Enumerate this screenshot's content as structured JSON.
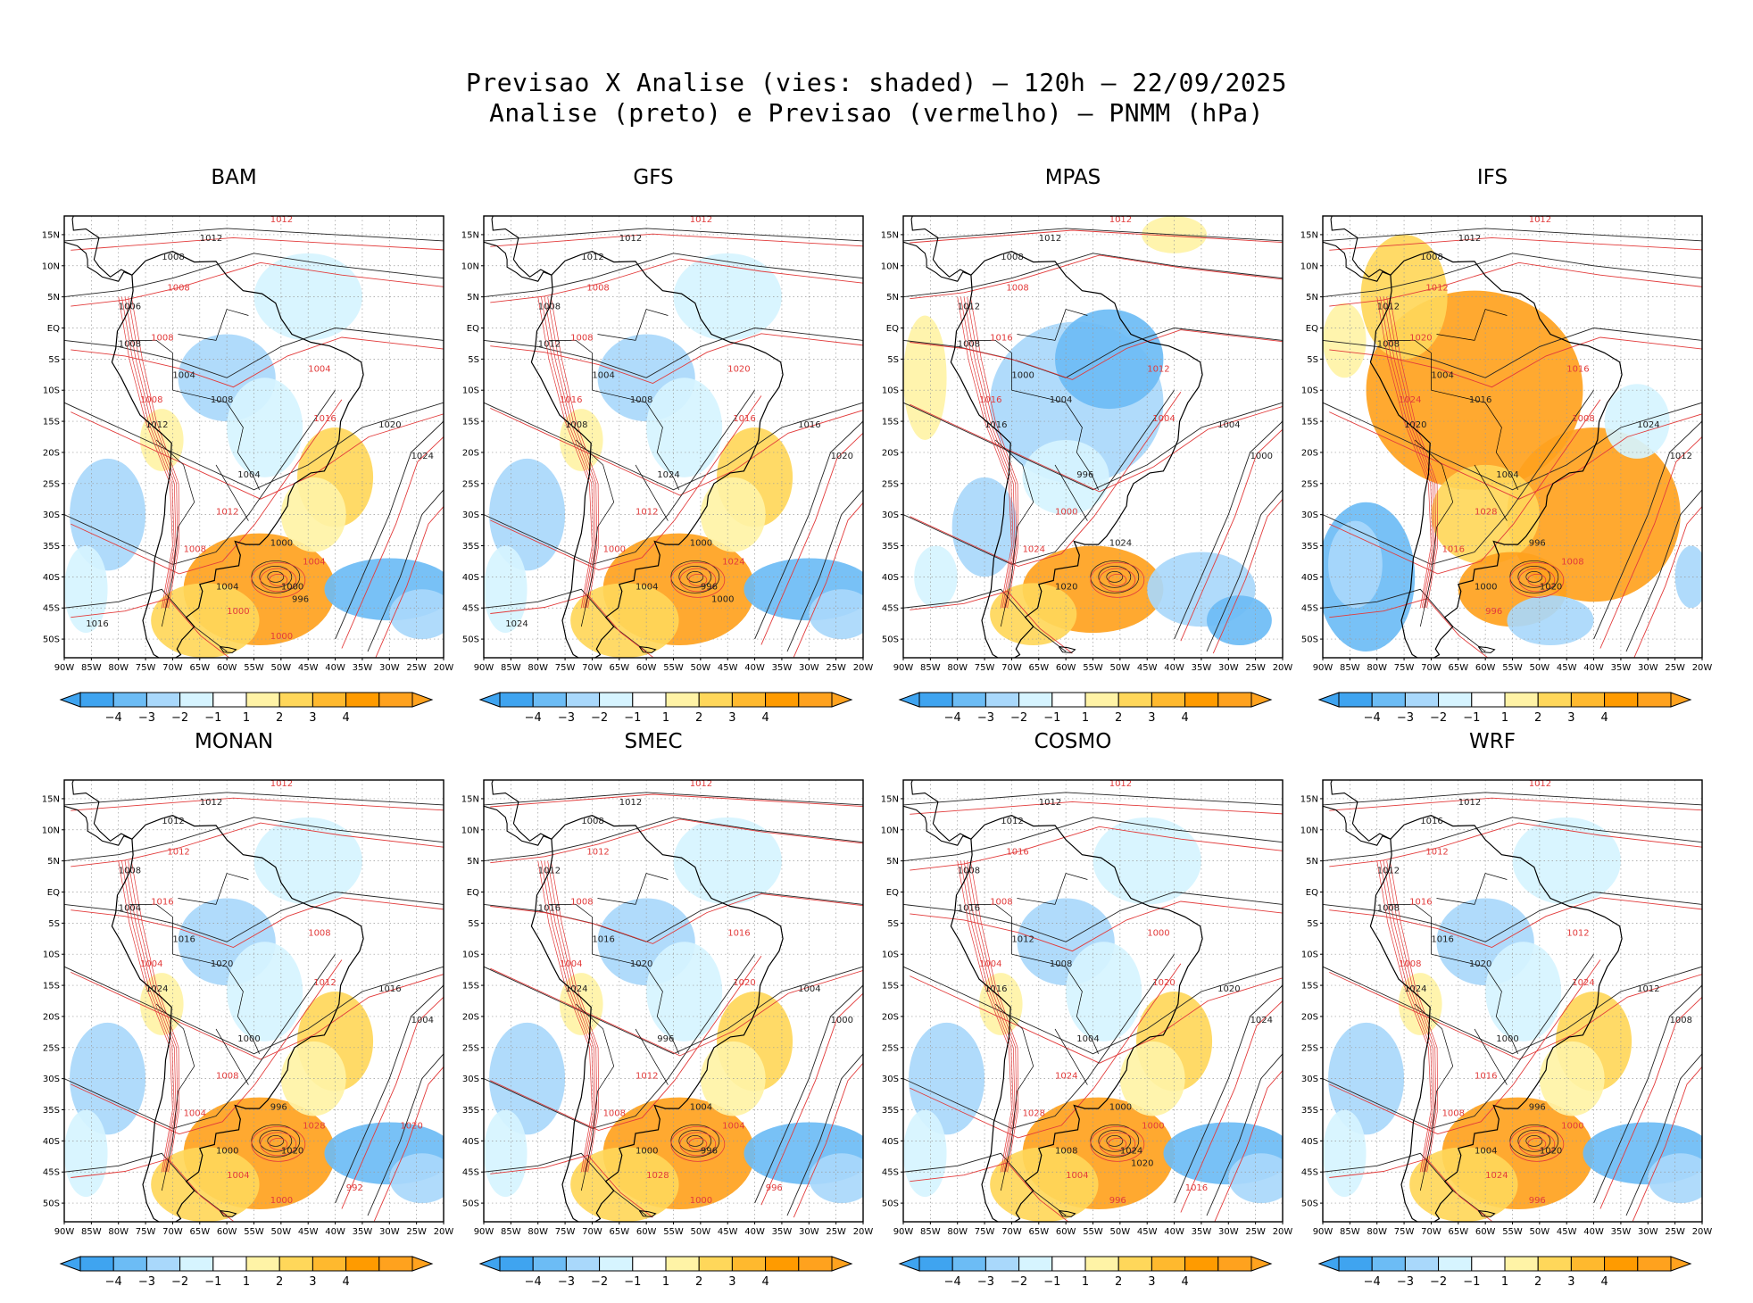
{
  "figure": {
    "title_line1": "Previsao X Analise (vies: shaded) – 120h – 22/09/2025",
    "title_line2": "Analise (preto) e Previsao (vermelho) – PNMM (hPa)"
  },
  "axes": {
    "lat_labels": [
      "15N",
      "10N",
      "5N",
      "EQ",
      "5S",
      "10S",
      "15S",
      "20S",
      "25S",
      "30S",
      "35S",
      "40S",
      "45S",
      "50S"
    ],
    "lon_labels": [
      "90W",
      "85W",
      "80W",
      "75W",
      "70W",
      "65W",
      "60W",
      "55W",
      "50W",
      "45W",
      "40W",
      "35W",
      "30W",
      "25W",
      "20W"
    ]
  },
  "colorbar": {
    "labels": [
      "-4",
      "-3",
      "-2",
      "-1",
      "1",
      "2",
      "3",
      "4"
    ],
    "colors": [
      "#3fa4f0",
      "#6cbcf5",
      "#a9d8fb",
      "#d6f4ff",
      "#ffffff",
      "#fff3a6",
      "#ffd75a",
      "#ffb92e",
      "#ff9b00",
      "#ffa21e"
    ]
  },
  "colors": {
    "analysis": "#222222",
    "forecast": "#e23b3b",
    "coast": "#000000",
    "grid": "#9a9a9a"
  },
  "panels": [
    {
      "name": "BAM",
      "bias": "mixed",
      "black_labels": [
        "1012",
        "1008",
        "1006",
        "1008",
        "1004",
        "1008",
        "1012",
        "1020",
        "1024",
        "1004",
        "1000",
        "1004",
        "1000",
        "996",
        "1016"
      ],
      "red_labels": [
        "1012",
        "1008",
        "1008",
        "1008",
        "1004",
        "1016",
        "1012",
        "1008",
        "1004",
        "1000",
        "1000"
      ]
    },
    {
      "name": "GFS",
      "bias": "mixed",
      "black_labels": [
        "1012",
        "1012",
        "1008",
        "1012",
        "1004",
        "1008",
        "1008",
        "1016",
        "1020",
        "1024",
        "1000",
        "1004",
        "996",
        "1000",
        "1024"
      ],
      "red_labels": [
        "1012",
        "1008",
        "1008",
        "1016",
        "1020",
        "1016",
        "1012",
        "1000",
        "1024"
      ]
    },
    {
      "name": "MPAS",
      "bias": "negative",
      "black_labels": [
        "1012",
        "1008",
        "1012",
        "1008",
        "1000",
        "1004",
        "1016",
        "1004",
        "1000",
        "996",
        "1024",
        "1020"
      ],
      "red_labels": [
        "1012",
        "1008",
        "1016",
        "1016",
        "1012",
        "1004",
        "1000",
        "1024"
      ]
    },
    {
      "name": "IFS",
      "bias": "positive",
      "black_labels": [
        "1012",
        "1008",
        "1012",
        "1008",
        "1004",
        "1016",
        "1020",
        "1024",
        "1012",
        "1004",
        "996",
        "1000",
        "1020"
      ],
      "red_labels": [
        "1012",
        "1012",
        "1020",
        "1024",
        "1016",
        "1008",
        "1028",
        "1016",
        "1008",
        "996"
      ]
    },
    {
      "name": "MONAN",
      "bias": "mixed",
      "black_labels": [
        "1012",
        "1012",
        "1008",
        "1004",
        "1016",
        "1020",
        "1024",
        "1016",
        "1004",
        "1000",
        "996",
        "1000",
        "1020"
      ],
      "red_labels": [
        "1012",
        "1012",
        "1016",
        "1004",
        "1008",
        "1012",
        "1008",
        "1004",
        "1028",
        "1004",
        "1000",
        "992",
        "1020"
      ]
    },
    {
      "name": "SMEC",
      "bias": "mixed",
      "black_labels": [
        "1012",
        "1008",
        "1012",
        "1016",
        "1016",
        "1020",
        "1024",
        "1004",
        "1000",
        "996",
        "1004",
        "1000",
        "996"
      ],
      "red_labels": [
        "1012",
        "1012",
        "1008",
        "1004",
        "1016",
        "1020",
        "1012",
        "1008",
        "1004",
        "1028",
        "1000",
        "996"
      ]
    },
    {
      "name": "COSMO",
      "bias": "mixed",
      "black_labels": [
        "1012",
        "1012",
        "1008",
        "1016",
        "1012",
        "1008",
        "1016",
        "1020",
        "1024",
        "1004",
        "1000",
        "1008",
        "1024",
        "1020"
      ],
      "red_labels": [
        "1012",
        "1016",
        "1008",
        "1004",
        "1000",
        "1020",
        "1024",
        "1028",
        "1000",
        "1004",
        "996",
        "1016"
      ]
    },
    {
      "name": "WRF",
      "bias": "mixed",
      "black_labels": [
        "1012",
        "1016",
        "1012",
        "1008",
        "1016",
        "1020",
        "1024",
        "1012",
        "1008",
        "1000",
        "996",
        "1004",
        "1020"
      ],
      "red_labels": [
        "1012",
        "1012",
        "1016",
        "1008",
        "1012",
        "1024",
        "1016",
        "1008",
        "1000",
        "1024",
        "996"
      ]
    }
  ]
}
